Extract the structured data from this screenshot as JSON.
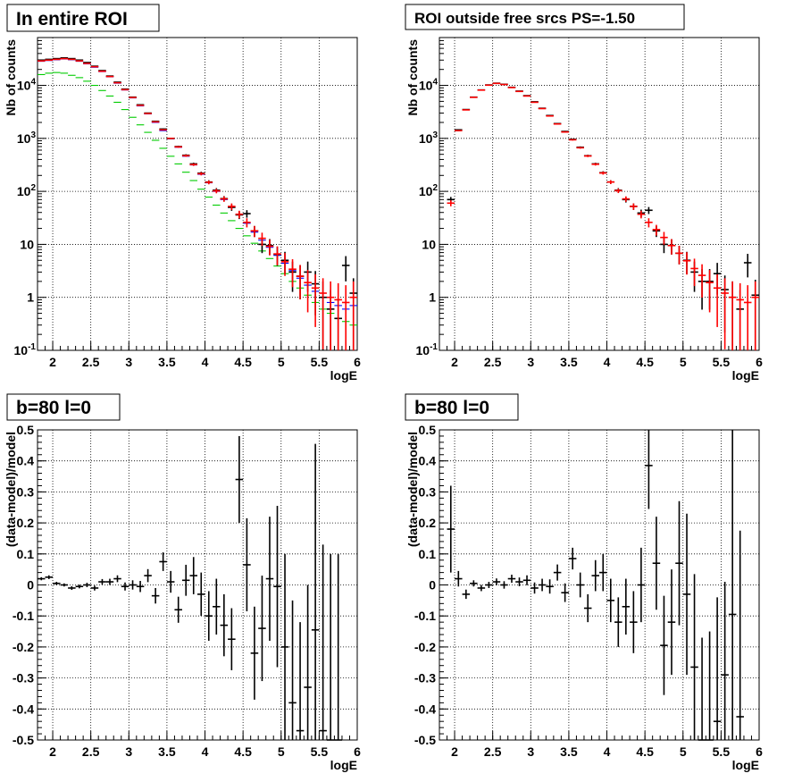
{
  "colors": {
    "data": "#000000",
    "model": "#ff0000",
    "blue": "#0000ff",
    "green": "#00cc00",
    "grid": "#000000"
  },
  "chart_data": [
    {
      "type": "scatter",
      "title": "In entire ROI",
      "xlabel": "logE",
      "ylabel": "Nb of counts",
      "xlim": [
        1.8,
        6.0
      ],
      "ylim": [
        0.1,
        80000
      ],
      "yscale": "log",
      "grid": true,
      "xticks": [
        "2",
        "2.5",
        "3",
        "3.5",
        "4",
        "4.5",
        "5",
        "5.5",
        "6"
      ],
      "yticks": [
        "10^{-1}",
        "1",
        "10",
        "10^{2}",
        "10^{3}",
        "10^{4}"
      ],
      "x": [
        1.85,
        1.95,
        2.05,
        2.15,
        2.25,
        2.35,
        2.45,
        2.55,
        2.65,
        2.75,
        2.85,
        2.95,
        3.05,
        3.15,
        3.25,
        3.35,
        3.45,
        3.55,
        3.65,
        3.75,
        3.85,
        3.95,
        4.05,
        4.15,
        4.25,
        4.35,
        4.45,
        4.55,
        4.65,
        4.75,
        4.85,
        4.95,
        5.05,
        5.15,
        5.25,
        5.35,
        5.45,
        5.55,
        5.65,
        5.75,
        5.85,
        5.95
      ],
      "series": [
        {
          "name": "",
          "color": "black",
          "values": [
            30000,
            31000,
            32000,
            33000,
            32000,
            30000,
            27000,
            23000,
            19000,
            15000,
            11500,
            8500,
            6000,
            4300,
            3000,
            2100,
            1500,
            1000,
            700,
            480,
            330,
            220,
            150,
            105,
            73,
            50,
            36,
            38,
            18,
            10,
            9.5,
            6.5,
            5,
            3,
            2.5,
            3,
            1.8,
            1,
            0.6,
            0.4,
            4,
            1.2
          ]
        },
        {
          "name": "",
          "color": "red",
          "values": [
            29000,
            30000,
            31000,
            32000,
            31000,
            29000,
            26000,
            22500,
            18500,
            14700,
            11200,
            8300,
            5900,
            4200,
            2950,
            2050,
            1450,
            1000,
            690,
            470,
            320,
            215,
            148,
            102,
            72,
            52,
            37,
            26,
            18,
            13,
            9.2,
            6.6,
            4.7,
            3.4,
            2.5,
            1.9,
            1.5,
            1.2,
            1.0,
            0.9,
            0.8,
            1.0
          ]
        },
        {
          "name": "",
          "color": "blue",
          "values": [
            28500,
            29500,
            30500,
            31500,
            30500,
            28500,
            25500,
            22000,
            18200,
            14500,
            11000,
            8200,
            5800,
            4100,
            2900,
            2000,
            1400,
            980,
            680,
            460,
            315,
            210,
            145,
            100,
            70,
            50,
            36,
            25,
            17,
            12,
            8.8,
            6.2,
            4.4,
            3.2,
            2.3,
            1.7,
            1.3,
            1.0,
            0.8,
            0.7,
            0.6,
            0.7
          ]
        },
        {
          "name": "",
          "color": "green",
          "values": [
            16000,
            17000,
            17500,
            17000,
            15500,
            14000,
            12000,
            10000,
            8000,
            6300,
            4800,
            3500,
            2500,
            1800,
            1300,
            920,
            650,
            460,
            330,
            230,
            160,
            110,
            78,
            55,
            39,
            28,
            20,
            14.5,
            10.5,
            7.5,
            5.4,
            3.9,
            2.8,
            2.0,
            1.5,
            1.1,
            0.8,
            0.6,
            0.5,
            0.4,
            0.35,
            0.3
          ]
        }
      ]
    },
    {
      "type": "scatter",
      "title": "ROI outside free srcs PS=-1.50",
      "xlabel": "logE",
      "ylabel": "Nb of counts",
      "xlim": [
        1.8,
        6.0
      ],
      "ylim": [
        0.1,
        80000
      ],
      "yscale": "log",
      "grid": true,
      "xticks": [
        "2",
        "2.5",
        "3",
        "3.5",
        "4",
        "4.5",
        "5",
        "5.5",
        "6"
      ],
      "yticks": [
        "10^{-1}",
        "1",
        "10",
        "10^{2}",
        "10^{3}",
        "10^{4}"
      ],
      "x": [
        1.95,
        2.05,
        2.15,
        2.25,
        2.35,
        2.45,
        2.55,
        2.65,
        2.75,
        2.85,
        2.95,
        3.05,
        3.15,
        3.25,
        3.35,
        3.45,
        3.55,
        3.65,
        3.75,
        3.85,
        3.95,
        4.05,
        4.15,
        4.25,
        4.35,
        4.45,
        4.55,
        4.65,
        4.75,
        4.85,
        4.95,
        5.05,
        5.15,
        5.25,
        5.35,
        5.45,
        5.55,
        5.65,
        5.75,
        5.85,
        5.95
      ],
      "series": [
        {
          "name": "",
          "color": "black",
          "values": [
            70,
            1450,
            3500,
            6000,
            8200,
            10200,
            11000,
            10500,
            9200,
            7800,
            6400,
            4900,
            3700,
            2700,
            1900,
            1350,
            960,
            680,
            470,
            330,
            225,
            150,
            105,
            70,
            52,
            39,
            44,
            18,
            10,
            9.5,
            6.8,
            5,
            3,
            2,
            2,
            2.8,
            1.4,
            1.0,
            0.6,
            4.5,
            1.1
          ]
        },
        {
          "name": "",
          "color": "red",
          "values": [
            60,
            1400,
            3450,
            5950,
            8150,
            10100,
            10900,
            10400,
            9100,
            7700,
            6300,
            4800,
            3650,
            2650,
            1870,
            1320,
            940,
            665,
            465,
            325,
            222,
            150,
            103,
            72,
            52,
            37,
            26,
            19,
            13.5,
            9.5,
            6.8,
            4.9,
            3.5,
            2.6,
            1.9,
            1.5,
            1.2,
            1.0,
            0.9,
            0.8,
            1.0
          ]
        }
      ]
    },
    {
      "type": "scatter",
      "title": "b=80 l=0",
      "xlabel": "logE",
      "ylabel": "(data-model)/model",
      "xlim": [
        1.8,
        6.0
      ],
      "ylim": [
        -0.5,
        0.5
      ],
      "grid": true,
      "xticks": [
        "2",
        "2.5",
        "3",
        "3.5",
        "4",
        "4.5",
        "5",
        "5.5",
        "6"
      ],
      "yticks": [
        "-0.5",
        "-0.4",
        "-0.3",
        "-0.2",
        "-0.1",
        "0",
        "0.1",
        "0.2",
        "0.3",
        "0.4",
        "0.5"
      ],
      "x": [
        1.85,
        1.95,
        2.05,
        2.15,
        2.25,
        2.35,
        2.45,
        2.55,
        2.65,
        2.75,
        2.85,
        2.95,
        3.05,
        3.15,
        3.25,
        3.35,
        3.45,
        3.55,
        3.65,
        3.75,
        3.85,
        3.95,
        4.05,
        4.15,
        4.25,
        4.35,
        4.45,
        4.55,
        4.65,
        4.75,
        4.85,
        4.95,
        5.05,
        5.15,
        5.25,
        5.35,
        5.45,
        5.55,
        5.65,
        5.75
      ],
      "series": [
        {
          "name": "",
          "color": "black",
          "values": [
            0.02,
            0.025,
            0.005,
            0.0,
            -0.01,
            -0.005,
            0.0,
            -0.01,
            0.01,
            0.01,
            0.02,
            -0.005,
            0.0,
            -0.005,
            0.03,
            -0.035,
            0.075,
            0.01,
            -0.08,
            0.015,
            0.03,
            -0.03,
            -0.1,
            -0.07,
            -0.13,
            -0.175,
            0.34,
            0.065,
            -0.22,
            -0.14,
            0.02,
            -0.005,
            -0.2,
            -0.38,
            -0.47,
            -0.33,
            -0.145,
            -0.47,
            -0.5,
            -0.5
          ],
          "errors": [
            0.005,
            0.006,
            0.005,
            0.005,
            0.006,
            0.006,
            0.007,
            0.008,
            0.009,
            0.01,
            0.011,
            0.013,
            0.015,
            0.018,
            0.021,
            0.025,
            0.03,
            0.035,
            0.042,
            0.05,
            0.06,
            0.07,
            0.08,
            0.09,
            0.1,
            0.1,
            0.14,
            0.15,
            0.15,
            0.17,
            0.2,
            0.26,
            0.3,
            0.33,
            0.35,
            0.33,
            0.6,
            0.6,
            0.6,
            0.6
          ]
        }
      ]
    },
    {
      "type": "scatter",
      "title": "b=80 l=0",
      "xlabel": "logE",
      "ylabel": "(data-model)/model",
      "xlim": [
        1.8,
        6.0
      ],
      "ylim": [
        -0.5,
        0.5
      ],
      "grid": true,
      "xticks": [
        "2",
        "2.5",
        "3",
        "3.5",
        "4",
        "4.5",
        "5",
        "5.5",
        "6"
      ],
      "yticks": [
        "-0.5",
        "-0.4",
        "-0.3",
        "-0.2",
        "-0.1",
        "0",
        "0.1",
        "0.2",
        "0.3",
        "0.4",
        "0.5"
      ],
      "x": [
        1.95,
        2.05,
        2.15,
        2.25,
        2.35,
        2.45,
        2.55,
        2.65,
        2.75,
        2.85,
        2.95,
        3.05,
        3.15,
        3.25,
        3.35,
        3.45,
        3.55,
        3.65,
        3.75,
        3.85,
        3.95,
        4.05,
        4.15,
        4.25,
        4.35,
        4.45,
        4.55,
        4.65,
        4.75,
        4.85,
        4.95,
        5.05,
        5.15,
        5.25,
        5.35,
        5.45,
        5.55,
        5.65,
        5.75
      ],
      "series": [
        {
          "name": "",
          "color": "black",
          "values": [
            0.18,
            0.02,
            -0.03,
            0.005,
            -0.01,
            0.0,
            0.01,
            0.0,
            0.02,
            0.01,
            0.015,
            -0.01,
            0.0,
            -0.005,
            0.04,
            -0.025,
            0.085,
            0.0,
            -0.075,
            0.03,
            0.04,
            -0.05,
            -0.12,
            -0.07,
            -0.12,
            0.0,
            0.385,
            0.07,
            -0.195,
            -0.12,
            0.07,
            -0.03,
            -0.265,
            -0.5,
            -0.5,
            -0.44,
            -0.29,
            -0.095,
            -0.425
          ],
          "errors": [
            0.14,
            0.025,
            0.015,
            0.01,
            0.01,
            0.01,
            0.011,
            0.012,
            0.013,
            0.014,
            0.016,
            0.018,
            0.02,
            0.023,
            0.026,
            0.03,
            0.035,
            0.04,
            0.045,
            0.05,
            0.06,
            0.07,
            0.08,
            0.09,
            0.1,
            0.12,
            0.14,
            0.15,
            0.16,
            0.17,
            0.2,
            0.26,
            0.3,
            0.33,
            0.35,
            0.4,
            0.3,
            0.6,
            0.6
          ]
        }
      ]
    }
  ]
}
